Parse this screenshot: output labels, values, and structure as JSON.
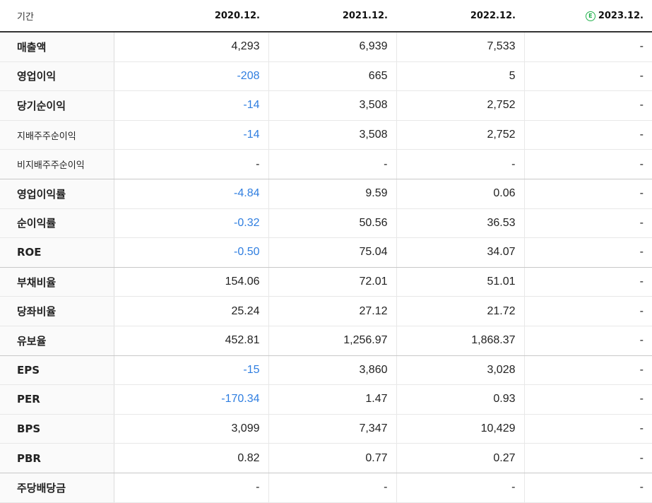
{
  "header": {
    "label": "기간",
    "periods": [
      "2020.12.",
      "2021.12.",
      "2022.12.",
      "2023.12."
    ],
    "estimate_badge": "E"
  },
  "rows": [
    {
      "label": "매출액",
      "values": [
        "4,293",
        "6,939",
        "7,533",
        "-"
      ]
    },
    {
      "label": "영업이익",
      "values": [
        "-208",
        "665",
        "5",
        "-"
      ]
    },
    {
      "label": "당기순이익",
      "values": [
        "-14",
        "3,508",
        "2,752",
        "-"
      ]
    },
    {
      "label": "지배주주순이익",
      "values": [
        "-14",
        "3,508",
        "2,752",
        "-"
      ]
    },
    {
      "label": "비지배주주순이익",
      "values": [
        "-",
        "-",
        "-",
        "-"
      ]
    },
    {
      "label": "영업이익률",
      "values": [
        "-4.84",
        "9.59",
        "0.06",
        "-"
      ]
    },
    {
      "label": "순이익률",
      "values": [
        "-0.32",
        "50.56",
        "36.53",
        "-"
      ]
    },
    {
      "label": "ROE",
      "values": [
        "-0.50",
        "75.04",
        "34.07",
        "-"
      ]
    },
    {
      "label": "부채비율",
      "values": [
        "154.06",
        "72.01",
        "51.01",
        "-"
      ]
    },
    {
      "label": "당좌비율",
      "values": [
        "25.24",
        "27.12",
        "21.72",
        "-"
      ]
    },
    {
      "label": "유보율",
      "values": [
        "452.81",
        "1,256.97",
        "1,868.37",
        "-"
      ]
    },
    {
      "label": "EPS",
      "values": [
        "-15",
        "3,860",
        "3,028",
        "-"
      ]
    },
    {
      "label": "PER",
      "values": [
        "-170.34",
        "1.47",
        "0.93",
        "-"
      ]
    },
    {
      "label": "BPS",
      "values": [
        "3,099",
        "7,347",
        "10,429",
        "-"
      ]
    },
    {
      "label": "PBR",
      "values": [
        "0.82",
        "0.77",
        "0.27",
        "-"
      ]
    },
    {
      "label": "주당배당금",
      "values": [
        "-",
        "-",
        "-",
        "-"
      ]
    }
  ],
  "colors": {
    "negative": "#2f7ee0",
    "estimate": "#23b14d"
  }
}
